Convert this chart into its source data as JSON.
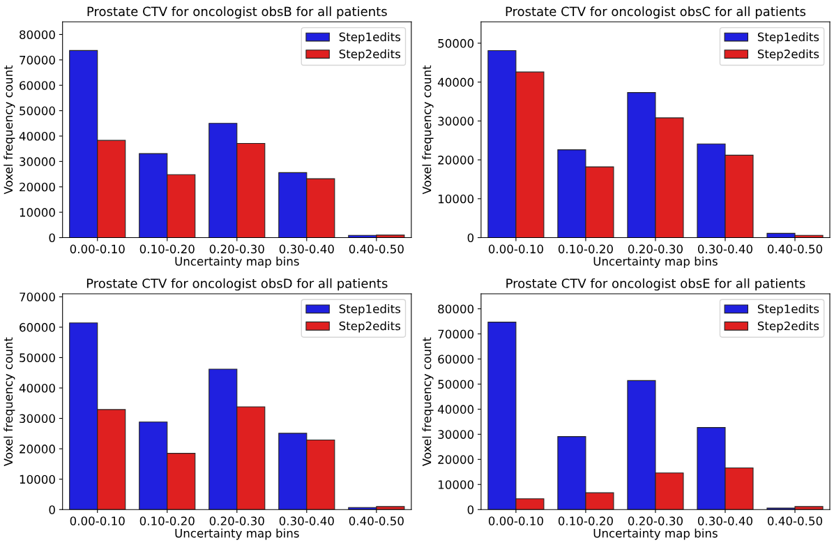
{
  "chart_data": [
    {
      "type": "bar",
      "title": "Prostate CTV for oncologist obsB for all patients",
      "xlabel": "Uncertainty map bins",
      "ylabel": "Voxel frequency count",
      "categories": [
        "0.00-0.10",
        "0.10-0.20",
        "0.20-0.30",
        "0.30-0.40",
        "0.40-0.50"
      ],
      "series": [
        {
          "name": "Step1edits",
          "color": "#2020df",
          "values": [
            73700,
            33100,
            45000,
            25600,
            900
          ]
        },
        {
          "name": "Step2edits",
          "color": "#df2020",
          "values": [
            38300,
            24800,
            37100,
            23200,
            1000
          ]
        }
      ],
      "ylim": [
        0,
        85000
      ],
      "yticks": [
        0,
        10000,
        20000,
        30000,
        40000,
        50000,
        60000,
        70000,
        80000
      ],
      "legend": "top right",
      "grid": false
    },
    {
      "type": "bar",
      "title": "Prostate CTV for oncologist obsC for all patients",
      "xlabel": "Uncertainty map bins",
      "ylabel": "Voxel frequency count",
      "categories": [
        "0.00-0.10",
        "0.10-0.20",
        "0.20-0.30",
        "0.30-0.40",
        "0.40-0.50"
      ],
      "series": [
        {
          "name": "Step1edits",
          "color": "#2020df",
          "values": [
            48100,
            22600,
            37300,
            24100,
            1100
          ]
        },
        {
          "name": "Step2edits",
          "color": "#df2020",
          "values": [
            42600,
            18200,
            30800,
            21200,
            600
          ]
        }
      ],
      "ylim": [
        0,
        55500
      ],
      "yticks": [
        0,
        10000,
        20000,
        30000,
        40000,
        50000
      ],
      "legend": "top right",
      "grid": false
    },
    {
      "type": "bar",
      "title": "Prostate CTV for oncologist obsD for all patients",
      "xlabel": "Uncertainty map bins",
      "ylabel": "Voxel frequency count",
      "categories": [
        "0.00-0.10",
        "0.10-0.20",
        "0.20-0.30",
        "0.30-0.40",
        "0.40-0.50"
      ],
      "series": [
        {
          "name": "Step1edits",
          "color": "#2020df",
          "values": [
            61400,
            28800,
            46200,
            25100,
            700
          ]
        },
        {
          "name": "Step2edits",
          "color": "#df2020",
          "values": [
            32900,
            18500,
            33800,
            22900,
            1000
          ]
        }
      ],
      "ylim": [
        0,
        71000
      ],
      "yticks": [
        0,
        10000,
        20000,
        30000,
        40000,
        50000,
        60000,
        70000
      ],
      "legend": "top right",
      "grid": false
    },
    {
      "type": "bar",
      "title": "Prostate CTV for oncologist obsE for all patients",
      "xlabel": "Uncertainty map bins",
      "ylabel": "Voxel frequency count",
      "categories": [
        "0.00-0.10",
        "0.10-0.20",
        "0.20-0.30",
        "0.30-0.40",
        "0.40-0.50"
      ],
      "series": [
        {
          "name": "Step1edits",
          "color": "#2020df",
          "values": [
            74700,
            29100,
            51400,
            32700,
            600
          ]
        },
        {
          "name": "Step2edits",
          "color": "#df2020",
          "values": [
            4300,
            6700,
            14600,
            16600,
            1200
          ]
        }
      ],
      "ylim": [
        0,
        86000
      ],
      "yticks": [
        0,
        10000,
        20000,
        30000,
        40000,
        50000,
        60000,
        70000,
        80000
      ],
      "legend": "top right",
      "grid": false
    }
  ]
}
